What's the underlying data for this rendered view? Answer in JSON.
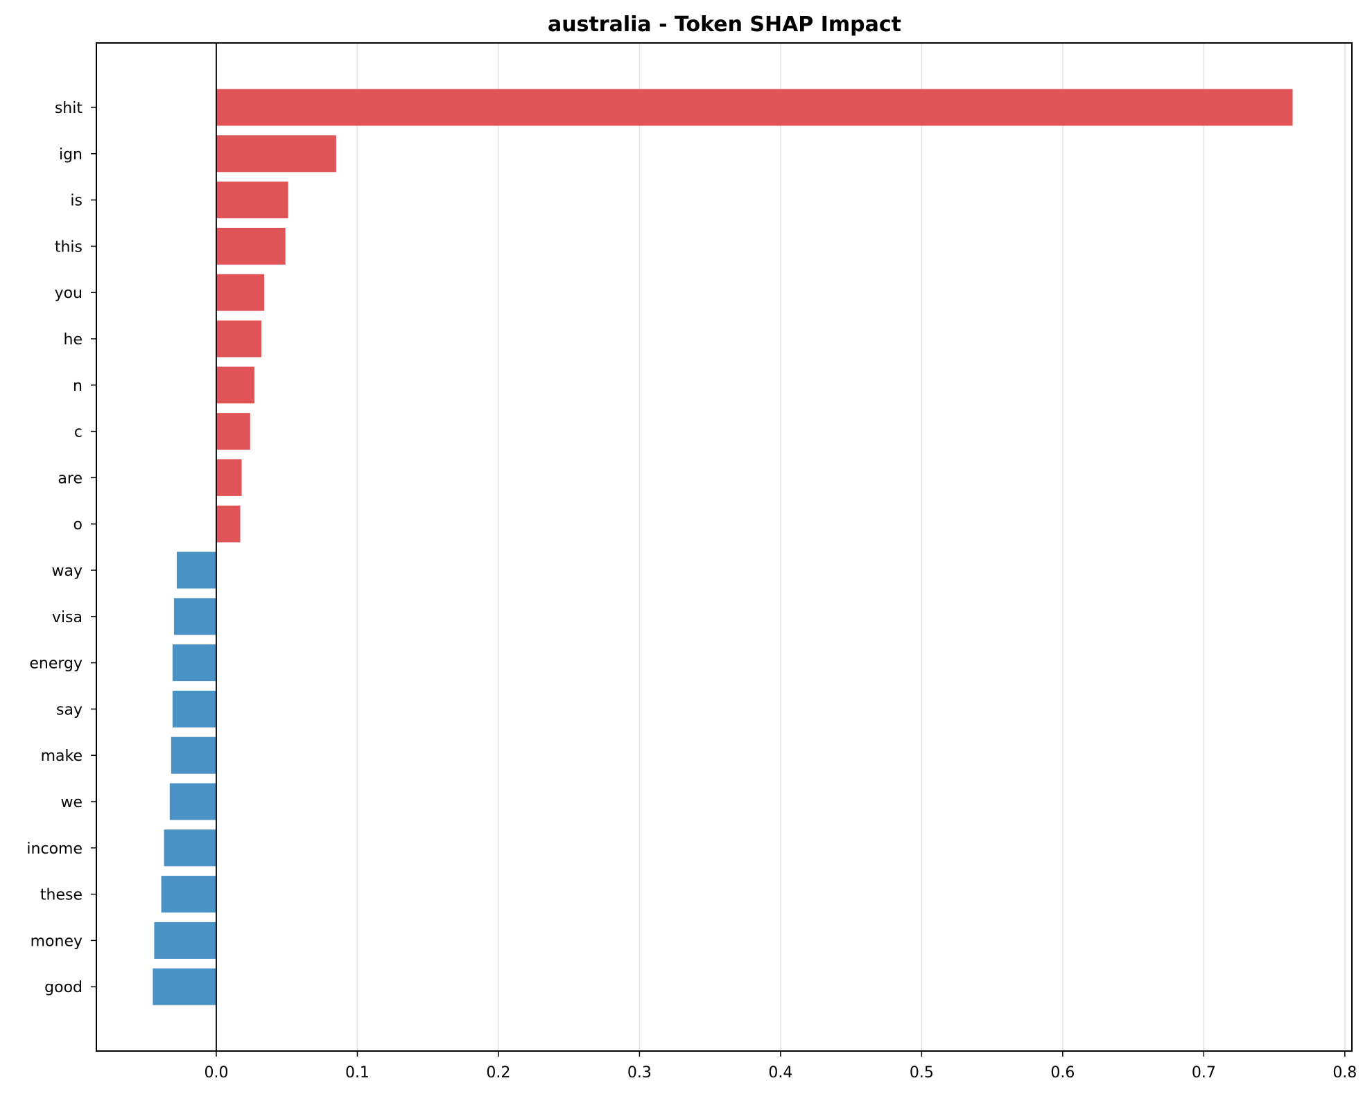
{
  "chart_data": {
    "type": "bar",
    "orientation": "horizontal",
    "title": "australia - Token SHAP Impact",
    "xlabel": "",
    "ylabel": "",
    "xlim": [
      -0.085,
      0.805
    ],
    "xticks": [
      "0.0",
      "0.1",
      "0.2",
      "0.3",
      "0.4",
      "0.5",
      "0.6",
      "0.7",
      "0.8"
    ],
    "xtick_values": [
      0,
      0.1,
      0.2,
      0.3,
      0.4,
      0.5,
      0.6,
      0.7,
      0.8
    ],
    "grid": "vertical",
    "legend": "none",
    "colors": {
      "positive": "#e05457",
      "negative": "#4a92c5"
    },
    "categories": [
      "shit",
      "ign",
      "is",
      "this",
      "you",
      "he",
      "n",
      "c",
      "are",
      "o",
      "way",
      "visa",
      "energy",
      "say",
      "make",
      "we",
      "income",
      "these",
      "money",
      "good"
    ],
    "values": [
      0.763,
      0.085,
      0.051,
      0.049,
      0.034,
      0.032,
      0.027,
      0.024,
      0.018,
      0.017,
      -0.028,
      -0.03,
      -0.031,
      -0.031,
      -0.032,
      -0.033,
      -0.037,
      -0.039,
      -0.044,
      -0.045
    ]
  }
}
